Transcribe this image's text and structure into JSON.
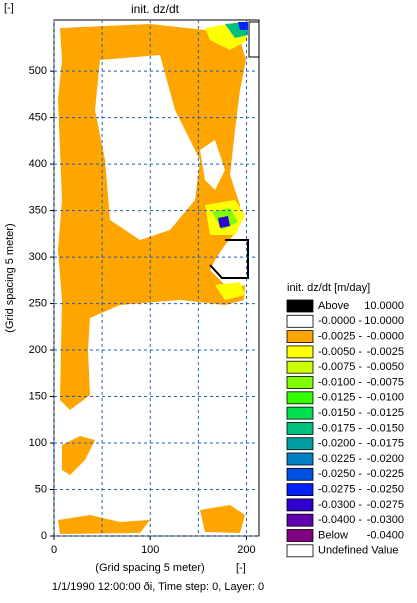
{
  "chart_data": {
    "type": "map",
    "title": "init. dz/dt",
    "unit_label": "[-]",
    "xlabel": "(Grid spacing 5 meter)",
    "xunit": "[-]",
    "ylabel": "(Grid spacing 5 meter)",
    "footer": "1/1/1990 12:00:00 ði, Time step: 0, Layer: 0",
    "xlim": [
      0,
      213
    ],
    "ylim": [
      0,
      555
    ],
    "xticks": [
      0,
      100,
      200
    ],
    "xgrid": [
      0,
      50,
      100,
      150,
      200
    ],
    "yticks": [
      0,
      50,
      100,
      150,
      200,
      250,
      300,
      350,
      400,
      450,
      500
    ],
    "grid": true,
    "legend": {
      "title": "init. dz/dt [m/day]",
      "entries": [
        {
          "from": "Above",
          "to": "10.0000",
          "color": "#000000"
        },
        {
          "from": "-0.0000 -",
          "to": "10.0000",
          "color": "#ffffff"
        },
        {
          "from": "-0.0025 -",
          "to": "-0.0000",
          "color": "#ffa500"
        },
        {
          "from": "-0.0050 -",
          "to": "-0.0025",
          "color": "#ffff00"
        },
        {
          "from": "-0.0075 -",
          "to": "-0.0050",
          "color": "#ccff00"
        },
        {
          "from": "-0.0100 -",
          "to": "-0.0075",
          "color": "#80ff00"
        },
        {
          "from": "-0.0125 -",
          "to": "-0.0100",
          "color": "#33ff00"
        },
        {
          "from": "-0.0150 -",
          "to": "-0.0125",
          "color": "#00e050"
        },
        {
          "from": "-0.0175 -",
          "to": "-0.0150",
          "color": "#00c080"
        },
        {
          "from": "-0.0200 -",
          "to": "-0.0175",
          "color": "#00a0a0"
        },
        {
          "from": "-0.0225 -",
          "to": "-0.0200",
          "color": "#0080c0"
        },
        {
          "from": "-0.0250 -",
          "to": "-0.0225",
          "color": "#0050e0"
        },
        {
          "from": "-0.0275 -",
          "to": "-0.0250",
          "color": "#0020ff"
        },
        {
          "from": "-0.0300 -",
          "to": "-0.0275",
          "color": "#3000d0"
        },
        {
          "from": "-0.0400 -",
          "to": "-0.0300",
          "color": "#6000b0"
        },
        {
          "from": "Below",
          "to": "-0.0400",
          "color": "#800080"
        },
        {
          "from": "Undefined Value",
          "color": "#ffffff"
        }
      ]
    }
  }
}
